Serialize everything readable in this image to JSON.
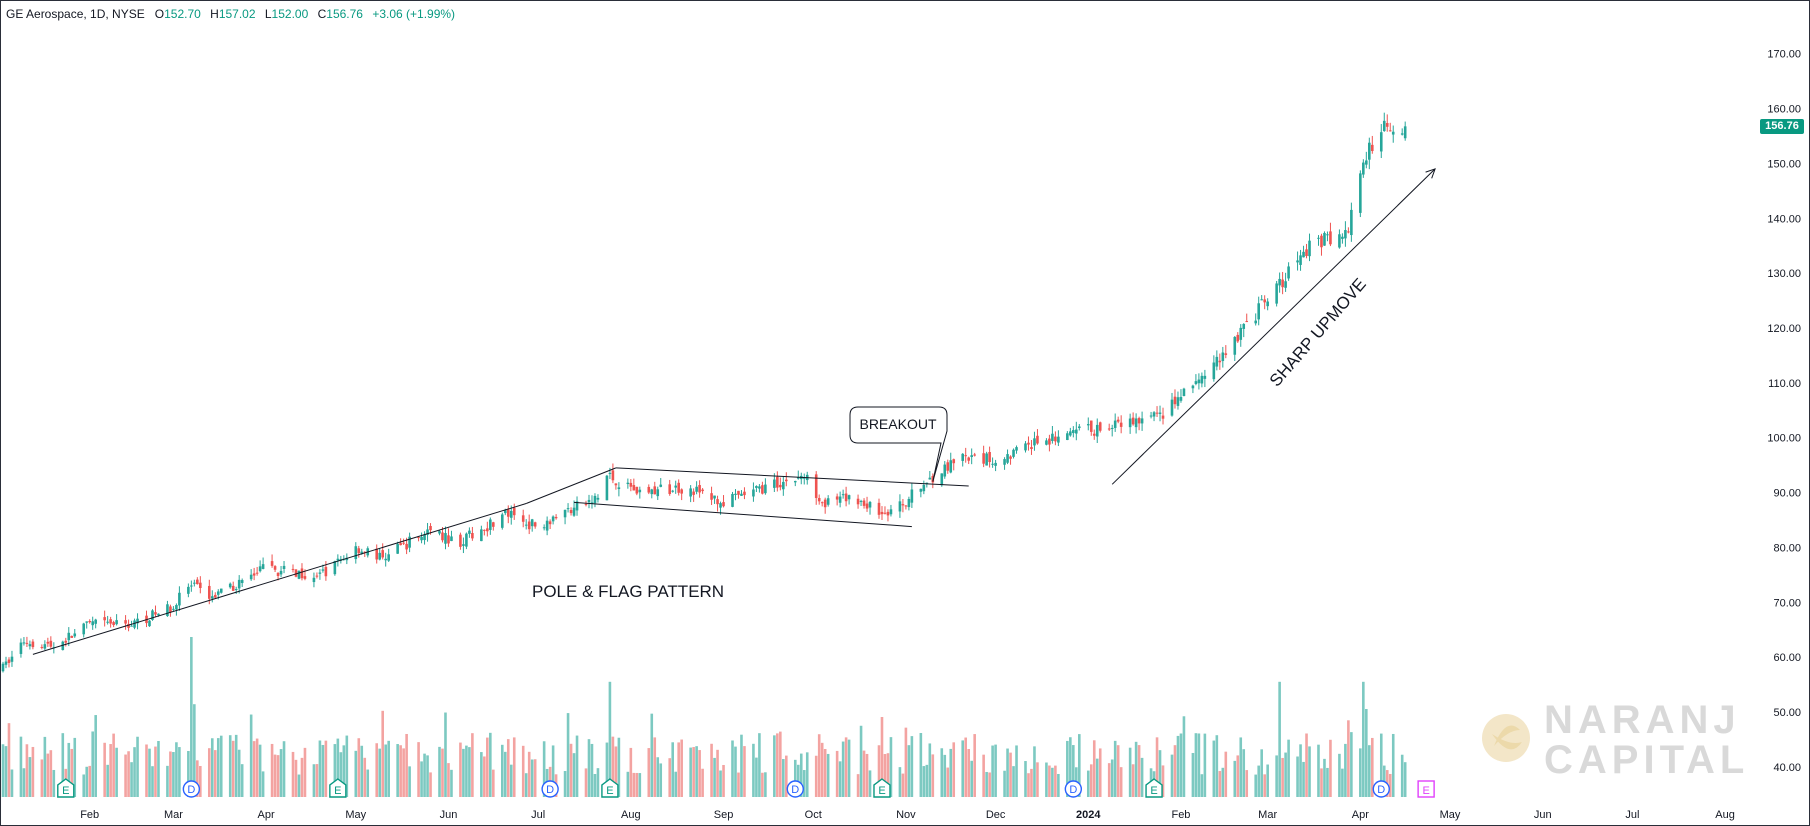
{
  "header": {
    "symbol": "GE Aerospace, 1D, NYSE",
    "open_label": "O",
    "open": "152.70",
    "high_label": "H",
    "high": "157.02",
    "low_label": "L",
    "low": "152.00",
    "close_label": "C",
    "close": "156.76",
    "change": "+3.06 (+1.99%)"
  },
  "colors": {
    "up": "#26a69a",
    "down": "#ef5350",
    "up_vol": "#7cc9c1",
    "down_vol": "#f3a3a1",
    "line": "#131722",
    "axis_text": "#131722",
    "price_tag": "#089981",
    "event_blue": "#2962ff",
    "event_green": "#089981",
    "event_magenta": "#e040fb"
  },
  "watermark": {
    "line1": "NARANJ",
    "line2": "CAPITAL"
  },
  "annotations": {
    "pattern_label": "POLE & FLAG PATTERN",
    "breakout_label": "BREAKOUT",
    "upmove_label": "SHARP UPMOVE"
  },
  "events": [
    {
      "date": "2023-01-24",
      "type": "E"
    },
    {
      "date": "2023-03-07",
      "type": "D"
    },
    {
      "date": "2023-04-25",
      "type": "E"
    },
    {
      "date": "2023-07-05",
      "type": "D"
    },
    {
      "date": "2023-07-25",
      "type": "E"
    },
    {
      "date": "2023-09-25",
      "type": "D"
    },
    {
      "date": "2023-10-24",
      "type": "E"
    },
    {
      "date": "2023-12-27",
      "type": "D"
    },
    {
      "date": "2024-01-23",
      "type": "E"
    },
    {
      "date": "2024-04-08",
      "type": "D"
    },
    {
      "date": "2024-04-23",
      "type": "E"
    }
  ],
  "chart_data": {
    "type": "candlestick",
    "symbol": "GE Aerospace",
    "interval": "1D",
    "exchange": "NYSE",
    "last_price": "156.76",
    "y_ticks": [
      "40.00",
      "50.00",
      "60.00",
      "70.00",
      "80.00",
      "90.00",
      "100.00",
      "110.00",
      "120.00",
      "130.00",
      "140.00",
      "150.00",
      "160.00",
      "170.00"
    ],
    "ylim": [
      34.5,
      172.5
    ],
    "x_ticks": [
      {
        "date": "2023-02-01",
        "label": "Feb"
      },
      {
        "date": "2023-03-01",
        "label": "Mar"
      },
      {
        "date": "2023-04-01",
        "label": "Apr"
      },
      {
        "date": "2023-05-01",
        "label": "May"
      },
      {
        "date": "2023-06-01",
        "label": "Jun"
      },
      {
        "date": "2023-07-01",
        "label": "Jul"
      },
      {
        "date": "2023-08-01",
        "label": "Aug"
      },
      {
        "date": "2023-09-01",
        "label": "Sep"
      },
      {
        "date": "2023-10-01",
        "label": "Oct"
      },
      {
        "date": "2023-11-01",
        "label": "Nov"
      },
      {
        "date": "2023-12-01",
        "label": "Dec"
      },
      {
        "date": "2024-01-01",
        "label": "2024"
      },
      {
        "date": "2024-02-01",
        "label": "Feb"
      },
      {
        "date": "2024-03-01",
        "label": "Mar"
      },
      {
        "date": "2024-04-01",
        "label": "Apr"
      },
      {
        "date": "2024-05-01",
        "label": "May"
      },
      {
        "date": "2024-06-01",
        "label": "Jun"
      },
      {
        "date": "2024-07-01",
        "label": "Jul"
      },
      {
        "date": "2024-08-01",
        "label": "Aug"
      }
    ],
    "xlim": [
      "2023-01-03",
      "2024-08-10"
    ],
    "price_anchors": [
      [
        "2023-01-03",
        58
      ],
      [
        "2023-01-10",
        63
      ],
      [
        "2023-01-20",
        62
      ],
      [
        "2023-02-01",
        66
      ],
      [
        "2023-02-15",
        66
      ],
      [
        "2023-02-28",
        69
      ],
      [
        "2023-03-06",
        73
      ],
      [
        "2023-03-15",
        71
      ],
      [
        "2023-03-31",
        76
      ],
      [
        "2023-04-20",
        75
      ],
      [
        "2023-05-01",
        80
      ],
      [
        "2023-05-10",
        78
      ],
      [
        "2023-05-25",
        83
      ],
      [
        "2023-06-05",
        81
      ],
      [
        "2023-06-20",
        86
      ],
      [
        "2023-06-30",
        84
      ],
      [
        "2023-07-12",
        87
      ],
      [
        "2023-07-21",
        89
      ],
      [
        "2023-07-24",
        93
      ],
      [
        "2023-08-05",
        90
      ],
      [
        "2023-08-20",
        91
      ],
      [
        "2023-09-01",
        88
      ],
      [
        "2023-09-15",
        91
      ],
      [
        "2023-09-28",
        93
      ],
      [
        "2023-10-05",
        88
      ],
      [
        "2023-10-15",
        89
      ],
      [
        "2023-10-25",
        86
      ],
      [
        "2023-10-31",
        88
      ],
      [
        "2023-11-10",
        93
      ],
      [
        "2023-11-20",
        96
      ],
      [
        "2023-12-01",
        96
      ],
      [
        "2023-12-15",
        99
      ],
      [
        "2023-12-28",
        101
      ],
      [
        "2024-01-10",
        102
      ],
      [
        "2024-01-25",
        104
      ],
      [
        "2024-02-10",
        112
      ],
      [
        "2024-02-25",
        122
      ],
      [
        "2024-03-05",
        128
      ],
      [
        "2024-03-15",
        135
      ],
      [
        "2024-03-28",
        138
      ],
      [
        "2024-04-02",
        150
      ],
      [
        "2024-04-08",
        157
      ],
      [
        "2024-04-16",
        156.76
      ]
    ],
    "volume_spikes": [
      [
        "2023-03-07",
        100
      ],
      [
        "2023-03-08",
        58
      ],
      [
        "2023-07-25",
        72
      ],
      [
        "2023-10-24",
        50
      ],
      [
        "2024-03-05",
        72
      ],
      [
        "2024-04-02",
        72
      ],
      [
        "2024-04-03",
        55
      ]
    ],
    "volume_range": [
      0,
      100
    ],
    "drawings": {
      "pole_lower": [
        [
          "2023-01-13",
          60.5
        ],
        [
          "2023-06-27",
          88
        ]
      ],
      "pole_upper": [
        [
          "2023-06-27",
          88
        ],
        [
          "2023-07-27",
          94.5
        ]
      ],
      "flag_upper": [
        [
          "2023-07-27",
          94.5
        ],
        [
          "2023-11-22",
          91.2
        ]
      ],
      "flag_lower": [
        [
          "2023-07-13",
          88.2
        ],
        [
          "2023-11-03",
          83.8
        ]
      ],
      "breakout_callout": {
        "box_anchor": [
          "2023-10-28",
          101
        ],
        "point": [
          "2023-11-10",
          92
        ]
      },
      "upmove_arrow": [
        [
          "2024-01-09",
          91.5
        ],
        [
          "2024-04-26",
          149
        ]
      ]
    }
  }
}
